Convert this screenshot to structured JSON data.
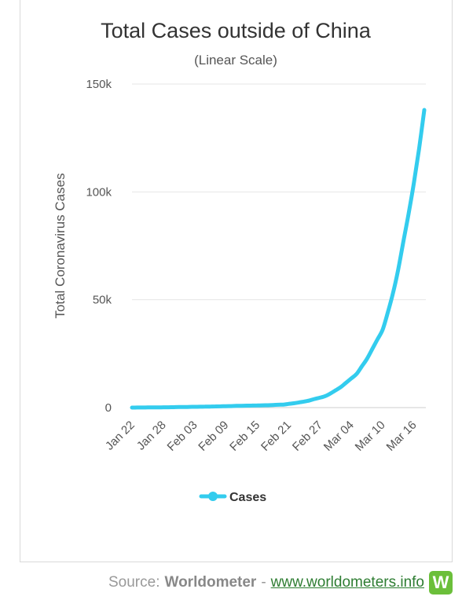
{
  "chart_data": {
    "type": "line",
    "title": "Total Cases outside of China",
    "subtitle": "(Linear Scale)",
    "ylabel": "Total Coronavirus Cases",
    "xlabel": "",
    "ylim": [
      0,
      150000
    ],
    "y_ticks": [
      0,
      50000,
      100000,
      150000
    ],
    "y_tick_labels": [
      "0",
      "50k",
      "100k",
      "150k"
    ],
    "x_tick_labels": [
      "Jan 22",
      "Jan 28",
      "Feb 03",
      "Feb 09",
      "Feb 15",
      "Feb 21",
      "Feb 27",
      "Mar 04",
      "Mar 10",
      "Mar 16"
    ],
    "grid": true,
    "legend_position": "bottom",
    "series": [
      {
        "name": "Cases",
        "color": "#33ccee",
        "x": [
          "Jan 22",
          "Jan 23",
          "Jan 24",
          "Jan 25",
          "Jan 26",
          "Jan 27",
          "Jan 28",
          "Jan 29",
          "Jan 30",
          "Jan 31",
          "Feb 01",
          "Feb 02",
          "Feb 03",
          "Feb 04",
          "Feb 05",
          "Feb 06",
          "Feb 07",
          "Feb 08",
          "Feb 09",
          "Feb 10",
          "Feb 11",
          "Feb 12",
          "Feb 13",
          "Feb 14",
          "Feb 15",
          "Feb 16",
          "Feb 17",
          "Feb 18",
          "Feb 19",
          "Feb 20",
          "Feb 21",
          "Feb 22",
          "Feb 23",
          "Feb 24",
          "Feb 25",
          "Feb 26",
          "Feb 27",
          "Feb 28",
          "Feb 29",
          "Mar 01",
          "Mar 02",
          "Mar 03",
          "Mar 04",
          "Mar 05",
          "Mar 06",
          "Mar 07",
          "Mar 08",
          "Mar 09",
          "Mar 10",
          "Mar 11",
          "Mar 12",
          "Mar 13",
          "Mar 14",
          "Mar 15",
          "Mar 16",
          "Mar 17",
          "Mar 18"
        ],
        "values": [
          10,
          20,
          40,
          60,
          80,
          100,
          130,
          150,
          200,
          250,
          280,
          320,
          360,
          400,
          450,
          480,
          550,
          600,
          650,
          700,
          800,
          850,
          900,
          950,
          1000,
          1050,
          1100,
          1200,
          1300,
          1400,
          1700,
          2000,
          2400,
          2800,
          3300,
          4000,
          4600,
          5300,
          6500,
          8000,
          9500,
          11500,
          13500,
          15500,
          19000,
          22500,
          27000,
          31500,
          36000,
          44000,
          53000,
          64000,
          77000,
          90000,
          104000,
          120000,
          138000
        ]
      }
    ]
  },
  "footer": {
    "source_label": "Source:",
    "brand": "Worldometer",
    "separator": "-",
    "link": "www.worldometers.info",
    "logo_letter": "W"
  }
}
